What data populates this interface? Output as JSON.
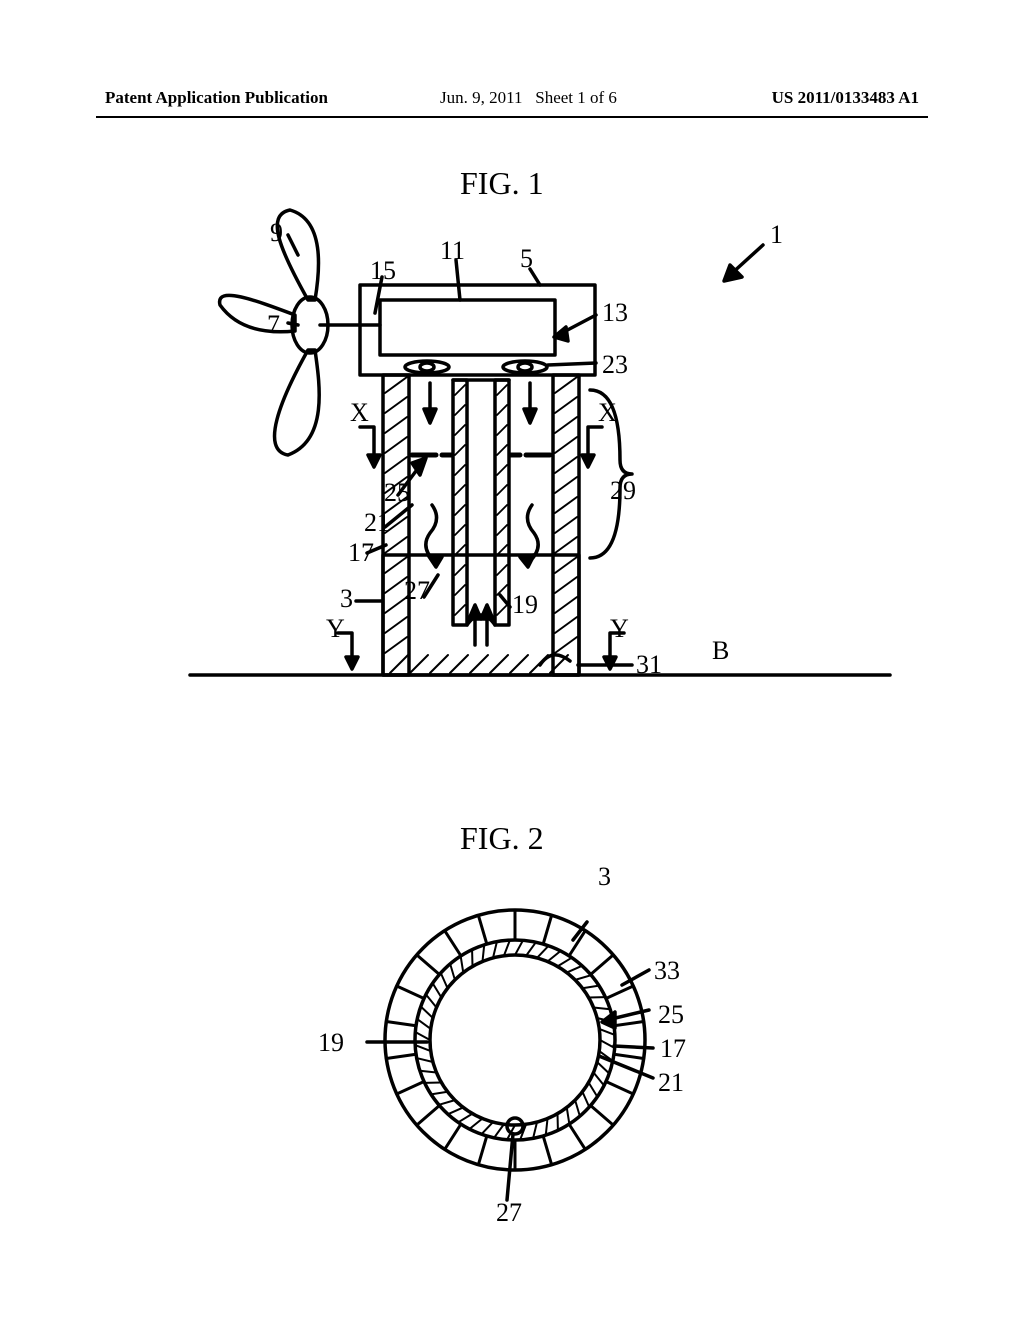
{
  "header": {
    "left": "Patent Application Publication",
    "date": "Jun. 9, 2011",
    "sheet": "Sheet 1 of 6",
    "pubno": "US 2011/0133483 A1"
  },
  "fig1": {
    "title": "FIG. 1",
    "title_fontsize": 32,
    "stroke": "#000000",
    "stroke_width": 3.5,
    "background": "#ffffff",
    "labels": {
      "ref1": "1",
      "ref3": "3",
      "ref5": "5",
      "ref7": "7",
      "ref9": "9",
      "ref11": "11",
      "ref13": "13",
      "ref15": "15",
      "ref17": "17",
      "ref19": "19",
      "ref21": "21",
      "ref23": "23",
      "ref25": "25",
      "ref27": "27",
      "ref29": "29",
      "ref31": "31",
      "X": "X",
      "Y": "Y",
      "B": "B"
    }
  },
  "fig2": {
    "title": "FIG. 2",
    "title_fontsize": 32,
    "stroke": "#000000",
    "stroke_width": 3.5,
    "background": "#ffffff",
    "outer_radius": 130,
    "mid_outer_radius": 100,
    "mid_inner_radius": 85,
    "n_ribs": 22,
    "labels": {
      "ref3": "3",
      "ref17": "17",
      "ref19": "19",
      "ref21": "21",
      "ref25": "25",
      "ref27": "27",
      "ref33": "33"
    }
  }
}
